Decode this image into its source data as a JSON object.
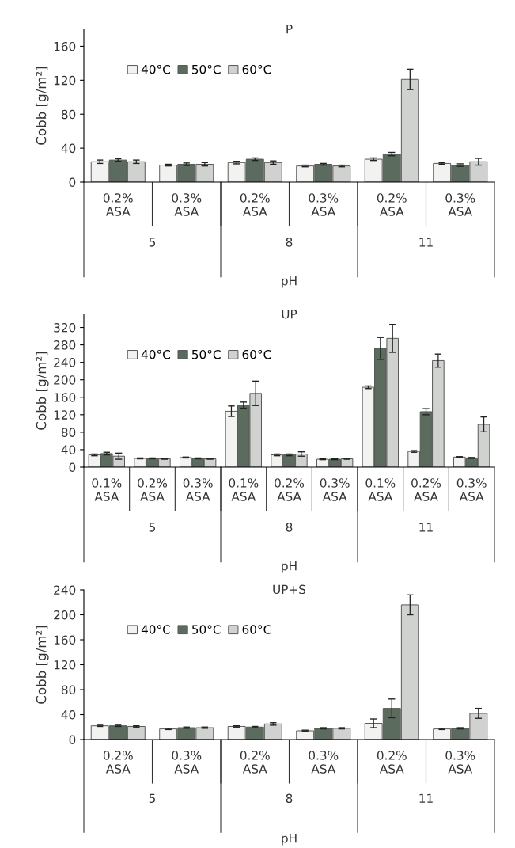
{
  "chart_data": [
    {
      "type": "bar",
      "title": "P",
      "ylabel": "Cobb [g/m²]",
      "xlabel": "pH",
      "annotations": [
        "5",
        "8",
        "11"
      ],
      "categories": [
        "0.2%\nASA",
        "0.3%\nASA",
        "0.2%\nASA",
        "0.3%\nASA",
        "0.2%\nASA",
        "0.3%\nASA"
      ],
      "series": [
        {
          "name": "40°C",
          "color": "#f2f2f0",
          "values": [
            24,
            20,
            23,
            19,
            27,
            22
          ],
          "errors": [
            2,
            1,
            1.5,
            1,
            1.5,
            1
          ]
        },
        {
          "name": "50°C",
          "color": "#5b6b5e",
          "values": [
            26,
            21,
            27,
            21,
            33,
            20
          ],
          "errors": [
            1.5,
            1.5,
            1.5,
            1,
            2,
            1.5
          ]
        },
        {
          "name": "60°C",
          "color": "#cfd2cf",
          "values": [
            24,
            21,
            23,
            19,
            121,
            24
          ],
          "errors": [
            2,
            2,
            2,
            1,
            12,
            4
          ]
        }
      ],
      "ylim": [
        0,
        180
      ],
      "yticks": [
        0,
        40,
        80,
        120,
        160
      ],
      "legend": "top left",
      "grid": false
    },
    {
      "type": "bar",
      "title": "UP",
      "ylabel": "Cobb [g/m²]",
      "xlabel": "pH",
      "annotations": [
        "5",
        "8",
        "11"
      ],
      "categories": [
        "0.1%\nASA",
        "0.2%\nASA",
        "0.3%\nASA",
        "0.1%\nASA",
        "0.2%\nASA",
        "0.3%\nASA",
        "0.1%\nASA",
        "0.2%\nASA",
        "0.3%\nASA"
      ],
      "series": [
        {
          "name": "40°C",
          "color": "#f2f2f0",
          "values": [
            28,
            20,
            22,
            128,
            28,
            18,
            183,
            36,
            23
          ],
          "errors": [
            2,
            1,
            1,
            12,
            2,
            1,
            3,
            2,
            1
          ]
        },
        {
          "name": "50°C",
          "color": "#5b6b5e",
          "values": [
            31,
            20,
            20,
            142,
            28,
            18,
            272,
            127,
            21
          ],
          "errors": [
            3,
            1,
            1,
            7,
            2,
            1,
            25,
            7,
            1
          ]
        },
        {
          "name": "60°C",
          "color": "#cfd2cf",
          "values": [
            25,
            19,
            19,
            169,
            30,
            19,
            295,
            244,
            98
          ],
          "errors": [
            7,
            1,
            1,
            28,
            5,
            1,
            32,
            15,
            17
          ]
        }
      ],
      "ylim": [
        0,
        350
      ],
      "yticks": [
        0,
        40,
        80,
        120,
        160,
        200,
        240,
        280,
        320
      ],
      "legend": "top left",
      "grid": false
    },
    {
      "type": "bar",
      "title": "UP+S",
      "ylabel": "Cobb [g/m²]",
      "xlabel": "pH",
      "annotations": [
        "5",
        "8",
        "11"
      ],
      "categories": [
        "0.2%\nASA",
        "0.3%\nASA",
        "0.2%\nASA",
        "0.3%\nASA",
        "0.2%\nASA",
        "0.3%\nASA"
      ],
      "series": [
        {
          "name": "40°C",
          "color": "#f2f2f0",
          "values": [
            22,
            17,
            21,
            14,
            26,
            17
          ],
          "errors": [
            1,
            1,
            1,
            1,
            7,
            1
          ]
        },
        {
          "name": "50°C",
          "color": "#5b6b5e",
          "values": [
            22,
            19,
            20,
            18,
            50,
            18
          ],
          "errors": [
            1,
            1,
            1,
            1,
            15,
            1
          ]
        },
        {
          "name": "60°C",
          "color": "#cfd2cf",
          "values": [
            21,
            19,
            25,
            18,
            216,
            42
          ],
          "errors": [
            1,
            1,
            2,
            1,
            16,
            8
          ]
        }
      ],
      "ylim": [
        0,
        240
      ],
      "yticks": [
        0,
        40,
        80,
        120,
        160,
        200,
        240
      ],
      "legend": "top left",
      "grid": false
    }
  ]
}
